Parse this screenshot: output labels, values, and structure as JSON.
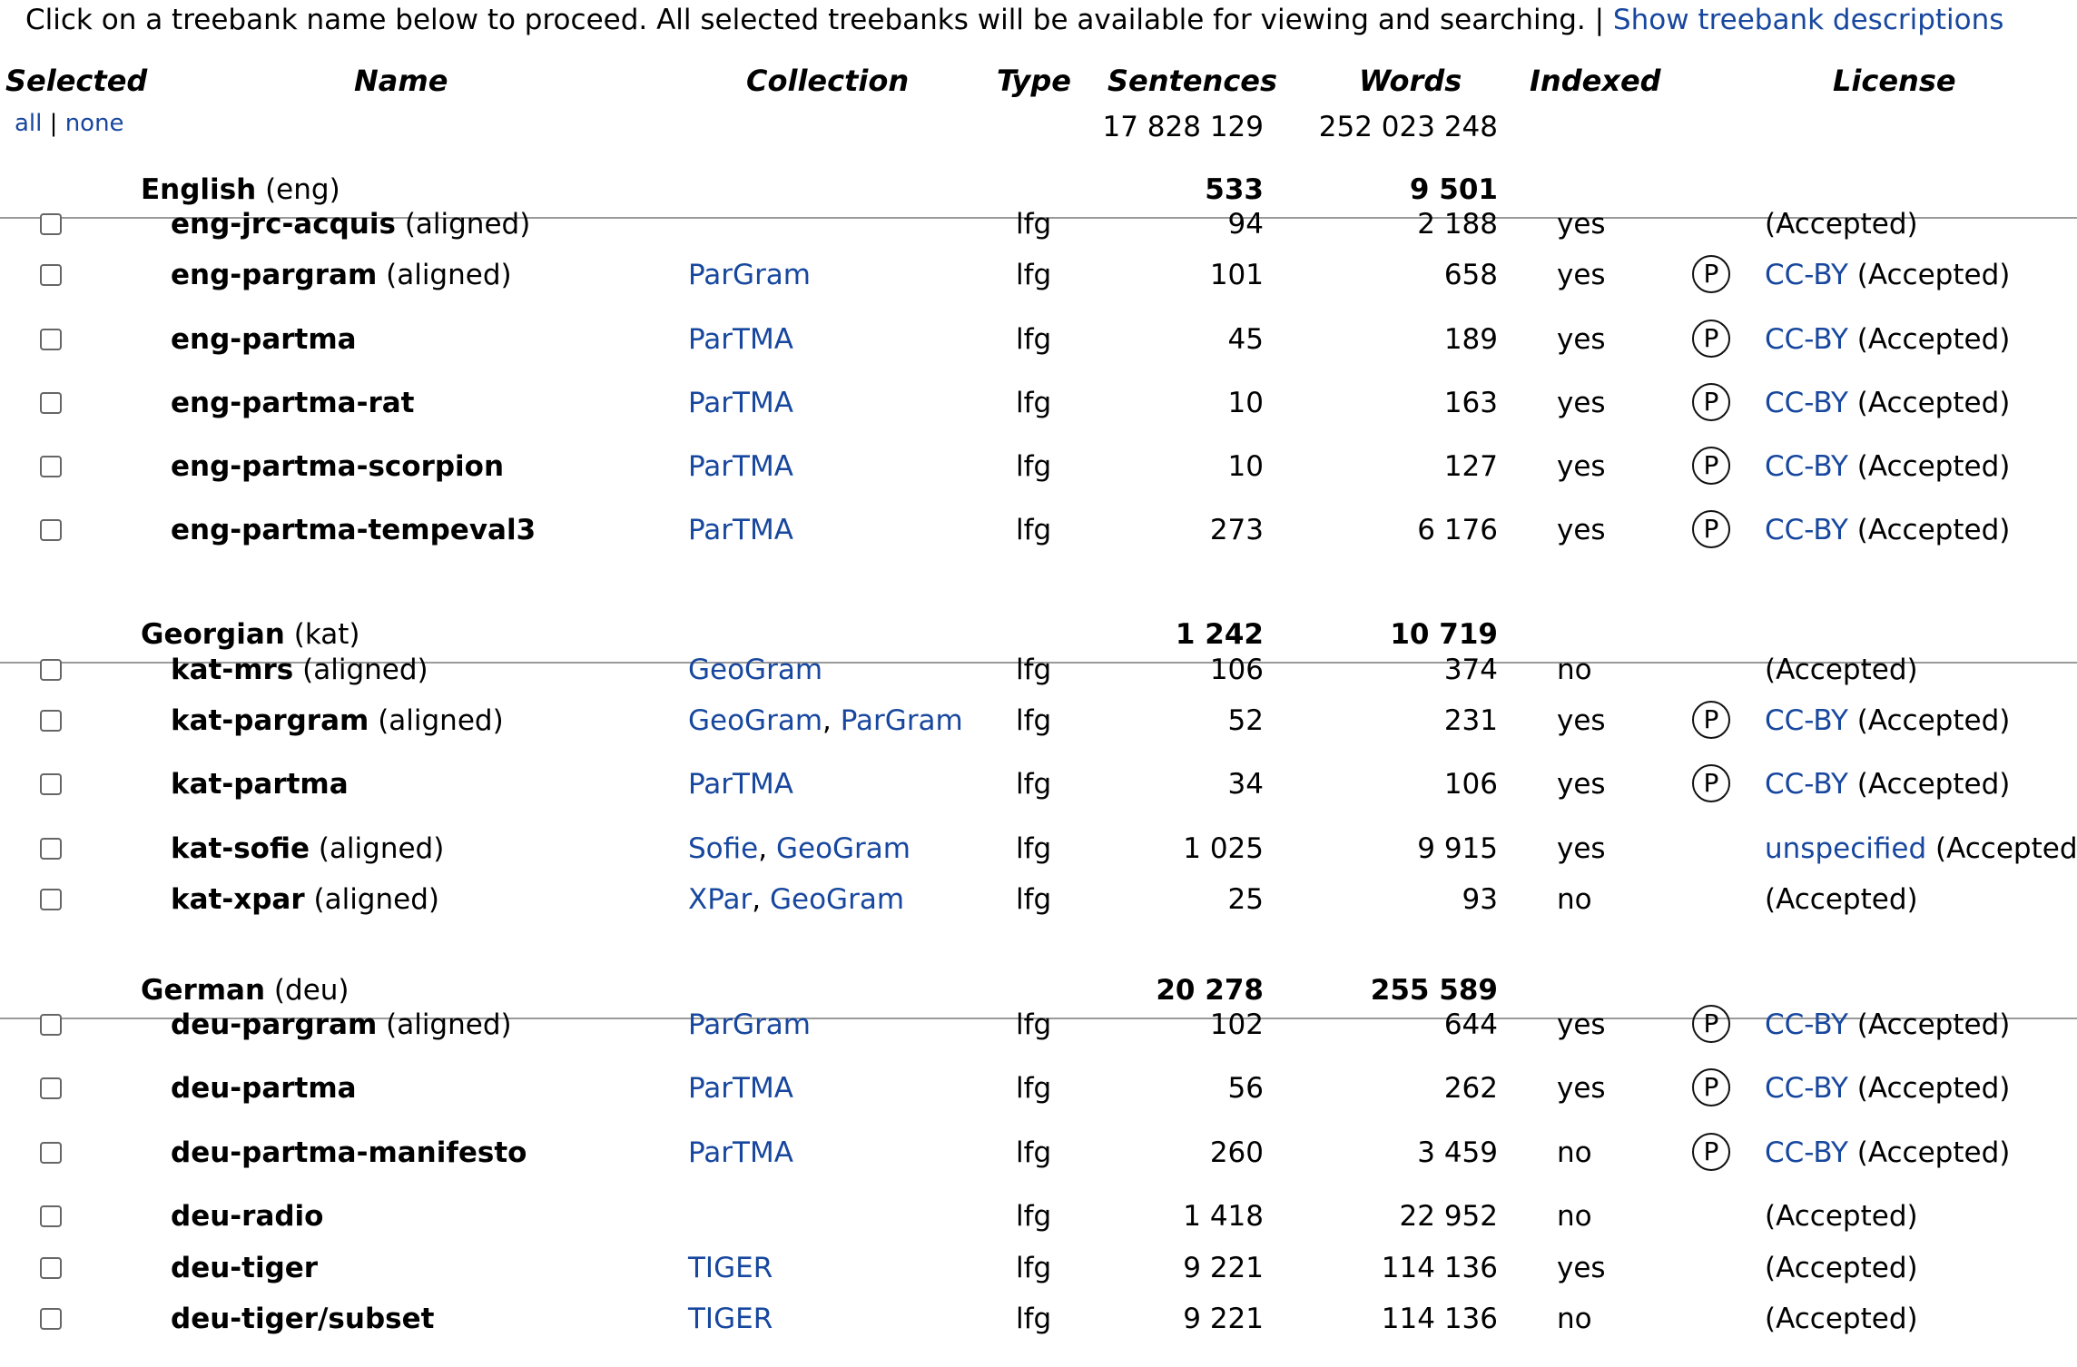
{
  "intro": {
    "text": "Click on a treebank name below to proceed. All selected treebanks will be available for viewing and searching. |",
    "link": "Show treebank descriptions"
  },
  "headers": {
    "selected": "Selected",
    "name": "Name",
    "collection": "Collection",
    "type": "Type",
    "sentences": "Sentences",
    "words": "Words",
    "indexed": "Indexed",
    "license": "License"
  },
  "select": {
    "all": "all",
    "sep": "|",
    "none": "none"
  },
  "totals": {
    "sentences": "17 828 129",
    "words": "252 023 248"
  },
  "groups": [
    {
      "name": "English",
      "code": "(eng)",
      "sentences": "533",
      "words": "9 501",
      "rows": [
        {
          "name": "eng-jrc-acquis",
          "aligned": "(aligned)",
          "collections": [],
          "type": "lfg",
          "sentences": "94",
          "words": "2 188",
          "indexed": "yes",
          "public": false,
          "license": "",
          "accepted": "(Accepted)"
        },
        {
          "name": "eng-pargram",
          "aligned": "(aligned)",
          "collections": [
            "ParGram"
          ],
          "type": "lfg",
          "sentences": "101",
          "words": "658",
          "indexed": "yes",
          "public": true,
          "license": "CC-BY",
          "accepted": "(Accepted)"
        },
        {
          "name": "eng-partma",
          "aligned": "",
          "collections": [
            "ParTMA"
          ],
          "type": "lfg",
          "sentences": "45",
          "words": "189",
          "indexed": "yes",
          "public": true,
          "license": "CC-BY",
          "accepted": "(Accepted)"
        },
        {
          "name": "eng-partma-rat",
          "aligned": "",
          "collections": [
            "ParTMA"
          ],
          "type": "lfg",
          "sentences": "10",
          "words": "163",
          "indexed": "yes",
          "public": true,
          "license": "CC-BY",
          "accepted": "(Accepted)"
        },
        {
          "name": "eng-partma-scorpion",
          "aligned": "",
          "collections": [
            "ParTMA"
          ],
          "type": "lfg",
          "sentences": "10",
          "words": "127",
          "indexed": "yes",
          "public": true,
          "license": "CC-BY",
          "accepted": "(Accepted)"
        },
        {
          "name": "eng-partma-tempeval3",
          "aligned": "",
          "collections": [
            "ParTMA"
          ],
          "type": "lfg",
          "sentences": "273",
          "words": "6 176",
          "indexed": "yes",
          "public": true,
          "license": "CC-BY",
          "accepted": "(Accepted)"
        }
      ]
    },
    {
      "name": "Georgian",
      "code": "(kat)",
      "sentences": "1 242",
      "words": "10 719",
      "rows": [
        {
          "name": "kat-mrs",
          "aligned": "(aligned)",
          "collections": [
            "GeoGram"
          ],
          "type": "lfg",
          "sentences": "106",
          "words": "374",
          "indexed": "no",
          "public": false,
          "license": "",
          "accepted": "(Accepted)"
        },
        {
          "name": "kat-pargram",
          "aligned": "(aligned)",
          "collections": [
            "GeoGram",
            "ParGram"
          ],
          "type": "lfg",
          "sentences": "52",
          "words": "231",
          "indexed": "yes",
          "public": true,
          "license": "CC-BY",
          "accepted": "(Accepted)"
        },
        {
          "name": "kat-partma",
          "aligned": "",
          "collections": [
            "ParTMA"
          ],
          "type": "lfg",
          "sentences": "34",
          "words": "106",
          "indexed": "yes",
          "public": true,
          "license": "CC-BY",
          "accepted": "(Accepted)"
        },
        {
          "name": "kat-sofie",
          "aligned": "(aligned)",
          "collections": [
            "Sofie",
            "GeoGram"
          ],
          "type": "lfg",
          "sentences": "1 025",
          "words": "9 915",
          "indexed": "yes",
          "public": false,
          "license": "unspecified",
          "accepted": "(Accepted)"
        },
        {
          "name": "kat-xpar",
          "aligned": "(aligned)",
          "collections": [
            "XPar",
            "GeoGram"
          ],
          "type": "lfg",
          "sentences": "25",
          "words": "93",
          "indexed": "no",
          "public": false,
          "license": "",
          "accepted": "(Accepted)"
        }
      ]
    },
    {
      "name": "German",
      "code": "(deu)",
      "sentences": "20 278",
      "words": "255 589",
      "rows": [
        {
          "name": "deu-pargram",
          "aligned": "(aligned)",
          "collections": [
            "ParGram"
          ],
          "type": "lfg",
          "sentences": "102",
          "words": "644",
          "indexed": "yes",
          "public": true,
          "license": "CC-BY",
          "accepted": "(Accepted)"
        },
        {
          "name": "deu-partma",
          "aligned": "",
          "collections": [
            "ParTMA"
          ],
          "type": "lfg",
          "sentences": "56",
          "words": "262",
          "indexed": "yes",
          "public": true,
          "license": "CC-BY",
          "accepted": "(Accepted)"
        },
        {
          "name": "deu-partma-manifesto",
          "aligned": "",
          "collections": [
            "ParTMA"
          ],
          "type": "lfg",
          "sentences": "260",
          "words": "3 459",
          "indexed": "no",
          "public": true,
          "license": "CC-BY",
          "accepted": "(Accepted)"
        },
        {
          "name": "deu-radio",
          "aligned": "",
          "collections": [],
          "type": "lfg",
          "sentences": "1 418",
          "words": "22 952",
          "indexed": "no",
          "public": false,
          "license": "",
          "accepted": "(Accepted)"
        },
        {
          "name": "deu-tiger",
          "aligned": "",
          "collections": [
            "TIGER"
          ],
          "type": "lfg",
          "sentences": "9 221",
          "words": "114 136",
          "indexed": "yes",
          "public": false,
          "license": "",
          "accepted": "(Accepted)"
        },
        {
          "name": "deu-tiger/subset",
          "aligned": "",
          "collections": [
            "TIGER"
          ],
          "type": "lfg",
          "sentences": "9 221",
          "words": "114 136",
          "indexed": "no",
          "public": false,
          "license": "",
          "accepted": "(Accepted)"
        }
      ]
    }
  ],
  "public_domain_symbol": "P",
  "colors": {
    "link": "#17479e",
    "rule": "#9a9a9a"
  }
}
